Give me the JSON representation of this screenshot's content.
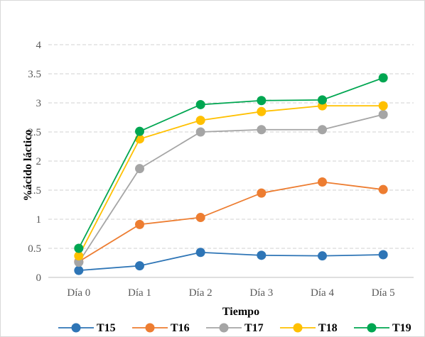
{
  "chart_data": {
    "type": "line",
    "title": "",
    "xlabel": "Tiempo",
    "ylabel": "%ácido láctico",
    "categories": [
      "Día 0",
      "Día 1",
      "Día 2",
      "Día 3",
      "Día 4",
      "Día 5"
    ],
    "ylim": [
      0,
      4
    ],
    "yticks": [
      "0",
      "0.5",
      "1",
      "1.5",
      "2",
      "2.5",
      "3",
      "3.5",
      "4"
    ],
    "grid": true,
    "legend_position": "bottom",
    "series": [
      {
        "name": "T15",
        "color": "#2E75B6",
        "values": [
          0.12,
          0.2,
          0.43,
          0.38,
          0.37,
          0.39
        ]
      },
      {
        "name": "T16",
        "color": "#ED7D31",
        "values": [
          0.27,
          0.91,
          1.03,
          1.45,
          1.64,
          1.51
        ]
      },
      {
        "name": "T17",
        "color": "#A5A5A5",
        "values": [
          0.26,
          1.87,
          2.5,
          2.54,
          2.54,
          2.8
        ]
      },
      {
        "name": "T18",
        "color": "#FFC000",
        "values": [
          0.37,
          2.38,
          2.7,
          2.85,
          2.95,
          2.95
        ]
      },
      {
        "name": "T19",
        "color": "#00A651",
        "values": [
          0.5,
          2.51,
          2.97,
          3.04,
          3.05,
          3.43
        ]
      }
    ]
  }
}
